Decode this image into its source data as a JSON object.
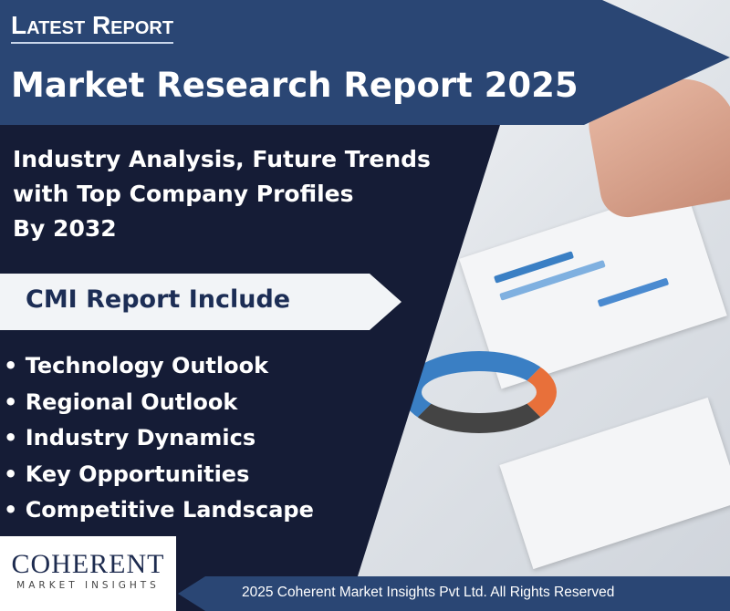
{
  "header": {
    "kicker": "Latest Report",
    "title": "Market Research Report 2025"
  },
  "subtitle": [
    "Industry Analysis, Future Trends",
    "with Top Company Profiles",
    "By  2032"
  ],
  "includes": {
    "heading": "CMI Report Include",
    "items": [
      "• Technology Outlook",
      "• Regional Outlook",
      "• Industry Dynamics",
      "• Key Opportunities",
      "• Competitive Landscape"
    ]
  },
  "logo": {
    "name": "COHERENT",
    "tagline": "MARKET INSIGHTS"
  },
  "footer": {
    "copyright": "2025 Coherent Market Insights Pvt Ltd. All Rights Reserved"
  },
  "colors": {
    "banner": "#2a4674",
    "panel": "#151c36"
  }
}
